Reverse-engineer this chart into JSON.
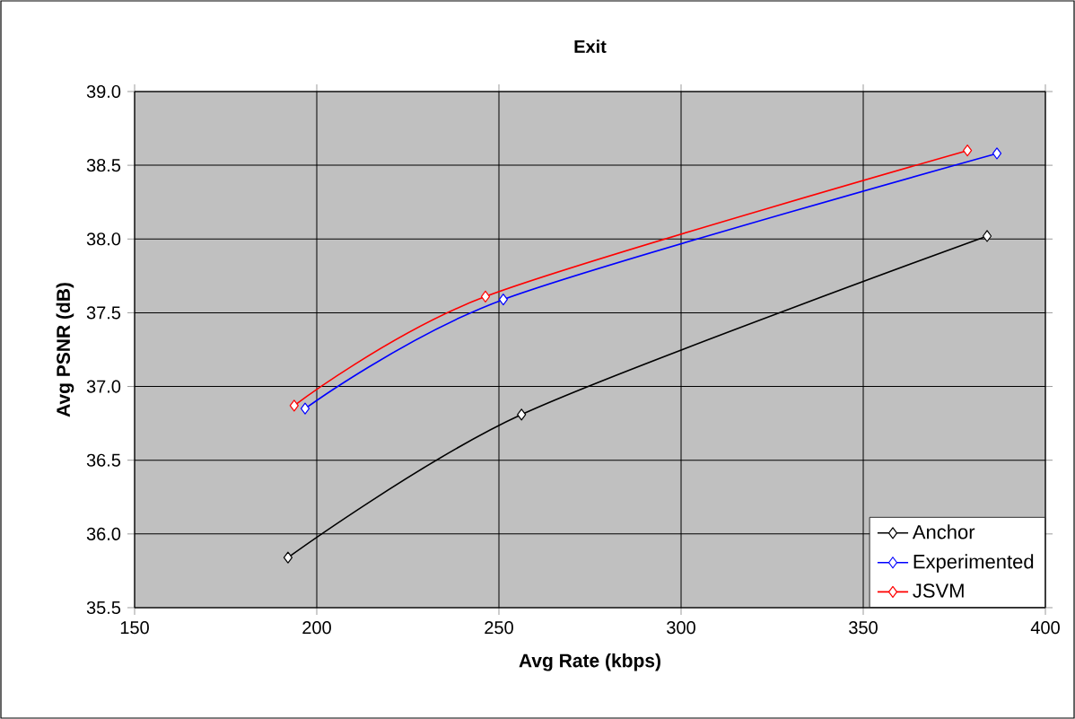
{
  "chart_data": {
    "type": "line",
    "title": "Exit",
    "xlabel": "Avg Rate (kbps)",
    "ylabel": "Avg PSNR (dB)",
    "xlim": [
      150,
      400
    ],
    "xticks": [
      150,
      200,
      250,
      300,
      350,
      400
    ],
    "ylim": [
      35.5,
      39.0
    ],
    "yticks": [
      {
        "value": 35.5,
        "label": "35.5"
      },
      {
        "value": 36.0,
        "label": "36.0"
      },
      {
        "value": 36.5,
        "label": "36.5"
      },
      {
        "value": 37.0,
        "label": "37.0"
      },
      {
        "value": 37.5,
        "label": "37.5"
      },
      {
        "value": 38.0,
        "label": "38.0"
      },
      {
        "value": 38.5,
        "label": "38.5"
      },
      {
        "value": 39.0,
        "label": "39.0"
      }
    ],
    "grid": true,
    "legend": "bottom right",
    "marker": "diamond",
    "line_style": "solid",
    "series": [
      {
        "name": "Anchor",
        "color": "#000000",
        "x": [
          192.1,
          256.2,
          384.0
        ],
        "values": [
          35.84,
          36.81,
          38.02
        ]
      },
      {
        "name": "Experimented",
        "color": "#0000ff",
        "x": [
          196.8,
          251.2,
          386.7
        ],
        "values": [
          36.85,
          37.59,
          38.58
        ]
      },
      {
        "name": "JSVM",
        "color": "#ff0000",
        "x": [
          193.8,
          246.3,
          378.6
        ],
        "values": [
          36.87,
          37.61,
          38.6
        ]
      }
    ]
  }
}
